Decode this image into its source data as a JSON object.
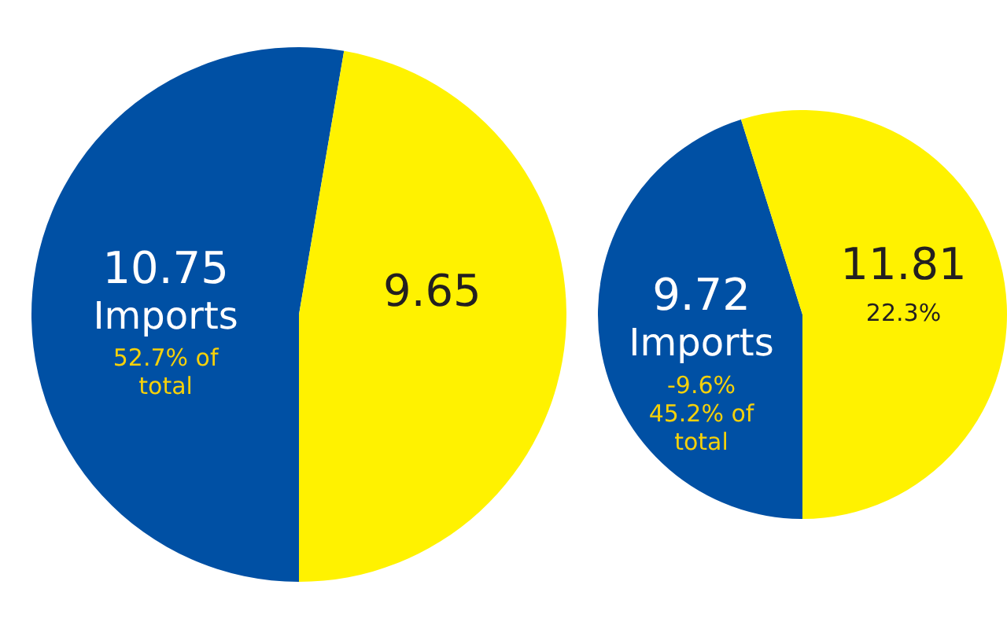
{
  "chart_data": [
    {
      "type": "pie",
      "categories": [
        "Imports",
        null
      ],
      "values": [
        10.75,
        9.65
      ],
      "colors": [
        "#0050a4",
        "#fff200"
      ],
      "data_labels": true,
      "annotations": [
        {
          "text": "52.7% of total",
          "x": "Imports"
        }
      ]
    },
    {
      "type": "pie",
      "categories": [
        "Imports",
        null
      ],
      "values": [
        9.72,
        11.81
      ],
      "colors": [
        "#0050a4",
        "#fff200"
      ],
      "data_labels": true,
      "annotations": [
        {
          "text": "-9.6%",
          "x": "Imports"
        },
        {
          "text": "45.2% of total",
          "x": "Imports"
        },
        "22.3%"
      ]
    }
  ]
}
